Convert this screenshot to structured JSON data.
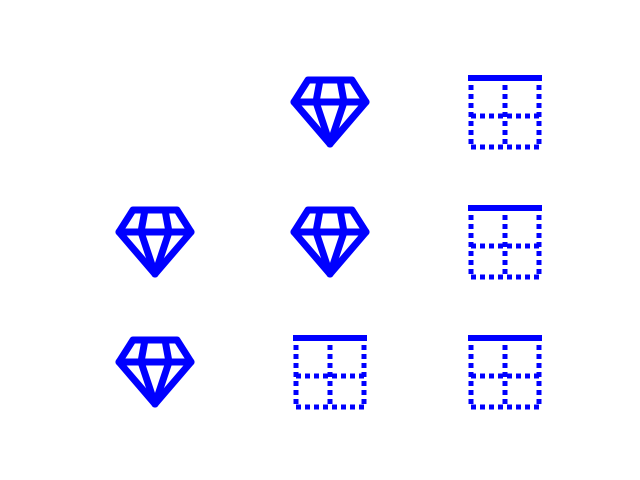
{
  "icon_color": "#0000ff",
  "grid": [
    [
      "",
      "diamond-icon",
      "border-top-icon"
    ],
    [
      "diamond-icon",
      "diamond-icon",
      "border-top-icon"
    ],
    [
      "diamond-icon",
      "border-top-icon",
      "border-top-icon"
    ]
  ]
}
